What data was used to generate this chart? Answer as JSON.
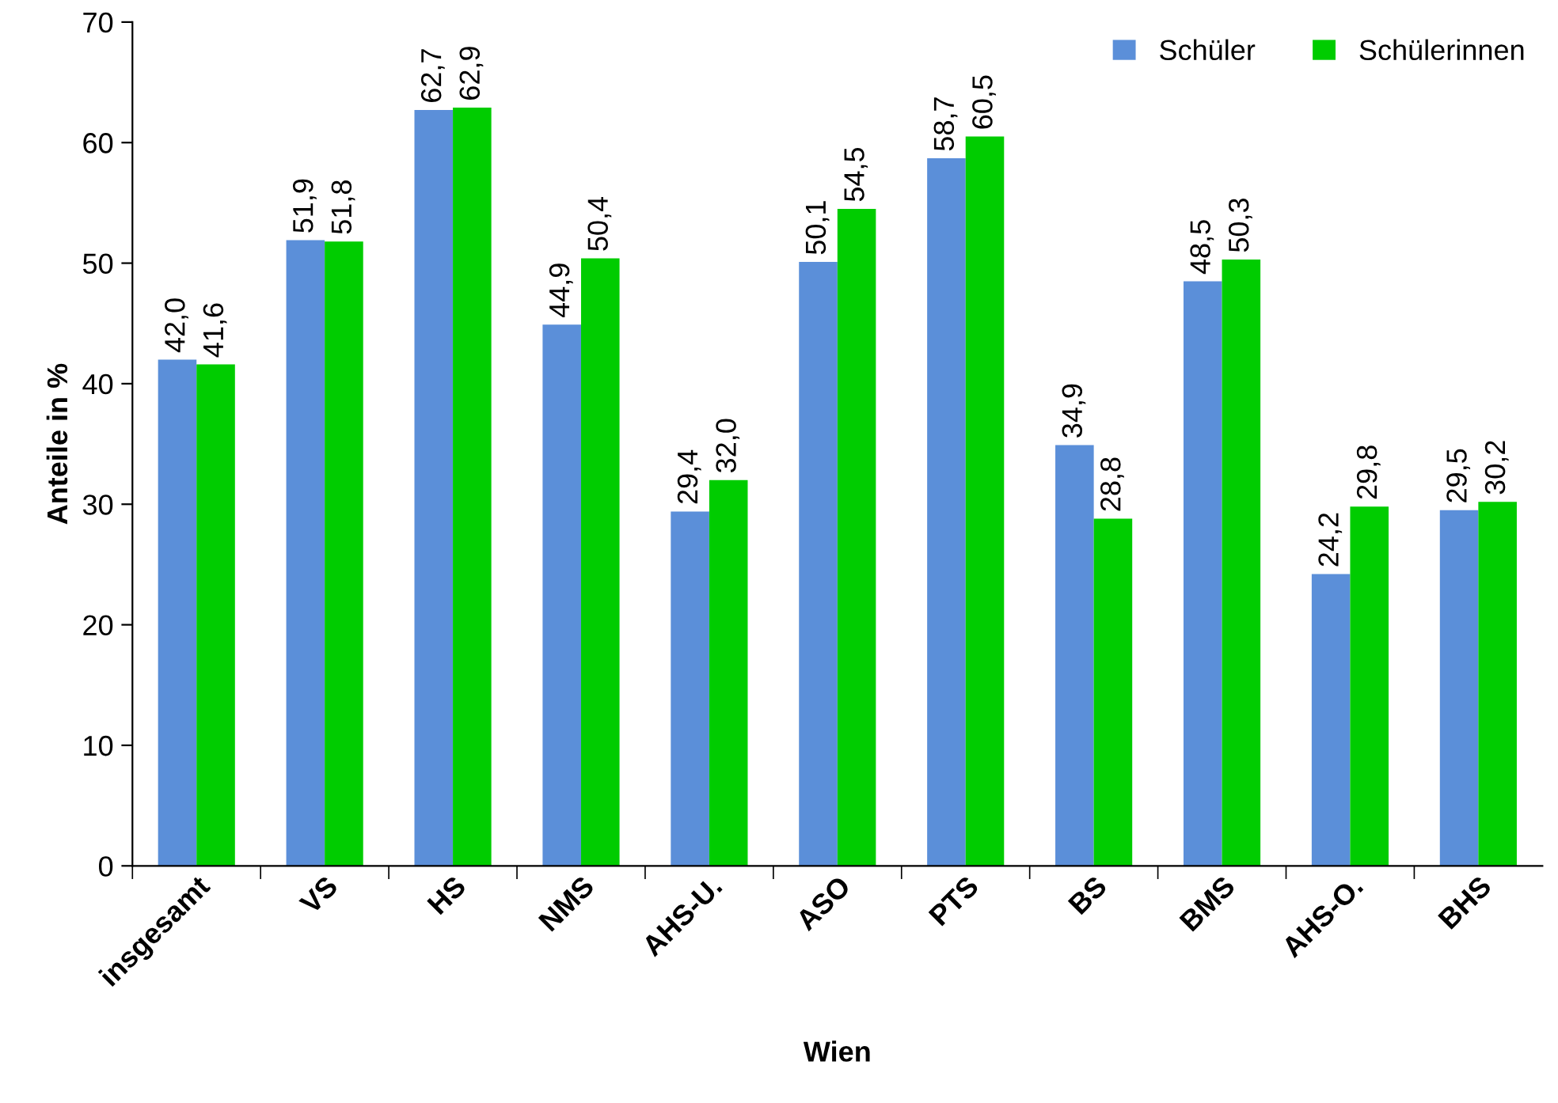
{
  "chart_data": {
    "type": "bar",
    "xlabel": "Wien",
    "ylabel": "Anteile in %",
    "categories": [
      "insgesamt",
      "VS",
      "HS",
      "NMS",
      "AHS-U.",
      "ASO",
      "PTS",
      "BS",
      "BMS",
      "AHS-O.",
      "BHS"
    ],
    "series": [
      {
        "name": "Schüler",
        "color": "#5b8fd9",
        "values": [
          42.0,
          51.9,
          62.7,
          44.9,
          29.4,
          50.1,
          58.7,
          34.9,
          48.5,
          24.2,
          29.5
        ],
        "value_labels": [
          "42,0",
          "51,9",
          "62,7",
          "44,9",
          "29,4",
          "50,1",
          "58,7",
          "34,9",
          "48,5",
          "24,2",
          "29,5"
        ]
      },
      {
        "name": "Schülerinnen",
        "color": "#00cc00",
        "values": [
          41.6,
          51.8,
          62.9,
          50.4,
          32.0,
          54.5,
          60.5,
          28.8,
          50.3,
          29.8,
          30.2
        ],
        "value_labels": [
          "41,6",
          "51,8",
          "62,9",
          "50,4",
          "32,0",
          "54,5",
          "60,5",
          "28,8",
          "50,3",
          "29,8",
          "30,2"
        ]
      }
    ],
    "ylim": [
      0,
      70
    ],
    "yticks": [
      0,
      10,
      20,
      30,
      40,
      50,
      60,
      70
    ],
    "grid": false,
    "legend": "top right"
  }
}
